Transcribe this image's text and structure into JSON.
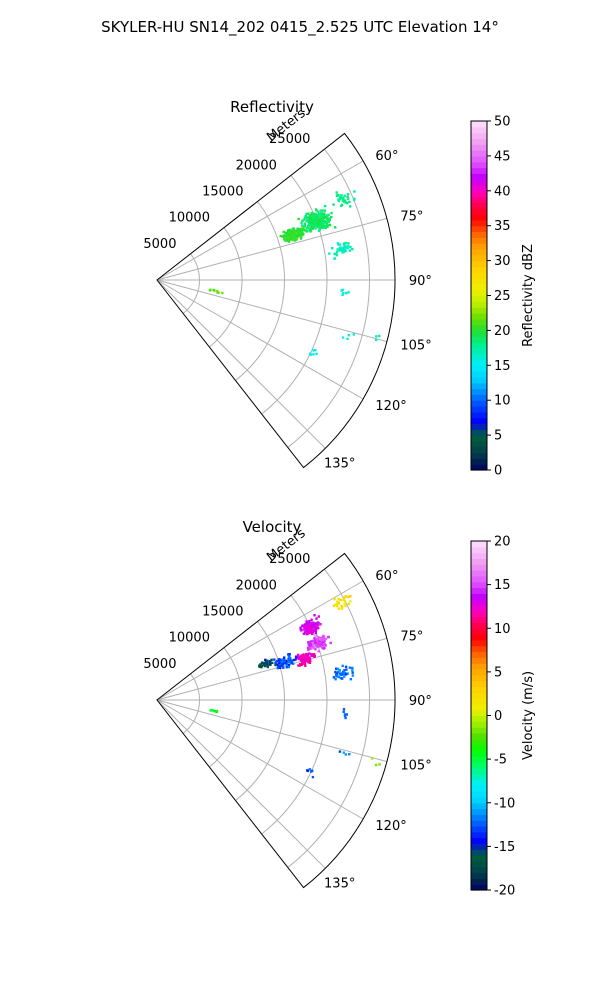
{
  "figure": {
    "suptitle": "SKYLER-HU  SN14_202  0415_2.525 UTC Elevation 14°"
  },
  "chart_data": [
    {
      "type": "scatter",
      "projection": "polar-sector",
      "title": "Reflectivity",
      "range_label": "Meters",
      "theta_range_deg": [
        52,
        142
      ],
      "r_max": 28000,
      "theta_ticks": [
        "60°",
        "75°",
        "90°",
        "105°",
        "120°",
        "135°"
      ],
      "r_ticks": [
        "5000",
        "10000",
        "15000",
        "20000",
        "25000"
      ],
      "grid": true,
      "colorbar": {
        "label": "Reflectivity dBZ",
        "min": 0,
        "max": 50,
        "ticks": [
          "0",
          "5",
          "10",
          "15",
          "20",
          "25",
          "30",
          "35",
          "40",
          "45",
          "50"
        ],
        "colormap": "pyart-NWSRef-like"
      },
      "echo_regions": [
        {
          "theta_deg": 69,
          "r_m": 20000,
          "count": 260,
          "value": 19,
          "spread": 4
        },
        {
          "theta_deg": 71,
          "r_m": 17000,
          "count": 220,
          "value": 20,
          "spread": 3
        },
        {
          "theta_deg": 66,
          "r_m": 24000,
          "count": 30,
          "value": 18,
          "spread": 3
        },
        {
          "theta_deg": 80,
          "r_m": 22000,
          "count": 40,
          "value": 17,
          "spread": 3
        },
        {
          "theta_deg": 94,
          "r_m": 22000,
          "count": 6,
          "value": 16,
          "spread": 2
        },
        {
          "theta_deg": 100,
          "r_m": 6800,
          "count": 8,
          "value": 22,
          "spread": 2
        },
        {
          "theta_deg": 106,
          "r_m": 23000,
          "count": 4,
          "value": 16,
          "spread": 2
        },
        {
          "theta_deg": 115,
          "r_m": 20000,
          "count": 6,
          "value": 15,
          "spread": 2
        },
        {
          "theta_deg": 105,
          "r_m": 27000,
          "count": 3,
          "value": 17,
          "spread": 2
        }
      ]
    },
    {
      "type": "scatter",
      "projection": "polar-sector",
      "title": "Velocity",
      "range_label": "Meters",
      "theta_range_deg": [
        52,
        142
      ],
      "r_max": 28000,
      "theta_ticks": [
        "60°",
        "75°",
        "90°",
        "105°",
        "120°",
        "135°"
      ],
      "r_ticks": [
        "5000",
        "10000",
        "15000",
        "20000",
        "25000"
      ],
      "grid": true,
      "colorbar": {
        "label": "Velocity (m/s)",
        "min": -20,
        "max": 20,
        "ticks": [
          "-20",
          "-15",
          "-10",
          "-5",
          "0",
          "5",
          "10",
          "15",
          "20"
        ],
        "colormap": "pyart-NWSVel-like"
      },
      "echo_regions": [
        {
          "theta_deg": 64,
          "r_m": 20000,
          "count": 120,
          "value": 13,
          "spread": 3
        },
        {
          "theta_deg": 70,
          "r_m": 20000,
          "count": 110,
          "value": 15,
          "spread": 3
        },
        {
          "theta_deg": 74,
          "r_m": 18000,
          "count": 90,
          "value": 12,
          "spread": 3
        },
        {
          "theta_deg": 73,
          "r_m": 15500,
          "count": 80,
          "value": -13,
          "spread": 3
        },
        {
          "theta_deg": 62,
          "r_m": 24500,
          "count": 25,
          "value": 2,
          "spread": 3
        },
        {
          "theta_deg": 81,
          "r_m": 22000,
          "count": 40,
          "value": -12,
          "spread": 3
        },
        {
          "theta_deg": 71,
          "r_m": 13500,
          "count": 40,
          "value": -16,
          "spread": 2
        },
        {
          "theta_deg": 94,
          "r_m": 22000,
          "count": 6,
          "value": -12,
          "spread": 2
        },
        {
          "theta_deg": 100,
          "r_m": 6800,
          "count": 8,
          "value": -5,
          "spread": 1
        },
        {
          "theta_deg": 106,
          "r_m": 23000,
          "count": 4,
          "value": -12,
          "spread": 2
        },
        {
          "theta_deg": 115,
          "r_m": 20000,
          "count": 6,
          "value": -13,
          "spread": 2
        },
        {
          "theta_deg": 105,
          "r_m": 27000,
          "count": 3,
          "value": -2,
          "spread": 2
        }
      ]
    }
  ]
}
